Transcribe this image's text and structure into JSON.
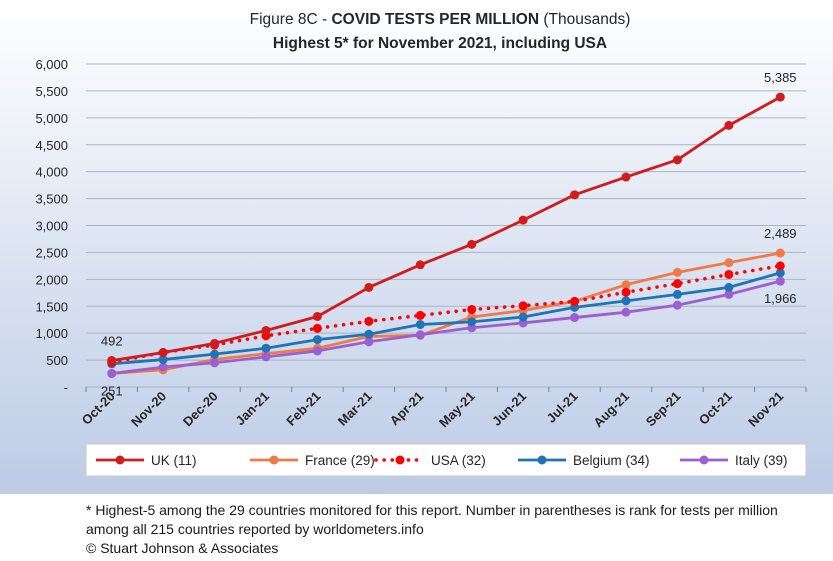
{
  "chart_data": {
    "type": "line",
    "title_prefix": "Figure 8C - ",
    "title_bold": "COVID TESTS PER MILLION",
    "title_suffix": " (Thousands)",
    "subtitle": "Highest 5* for November 2021, including USA",
    "categories": [
      "Oct-20",
      "Nov-20",
      "Dec-20",
      "Jan-21",
      "Feb-21",
      "Mar-21",
      "Apr-21",
      "May-21",
      "Jun-21",
      "Jul-21",
      "Aug-21",
      "Sep-21",
      "Oct-21",
      "Nov-21"
    ],
    "ylim": [
      0,
      6000
    ],
    "yticks": [
      0,
      500,
      1000,
      1500,
      2000,
      2500,
      3000,
      3500,
      4000,
      4500,
      5000,
      5500,
      6000
    ],
    "ytick_labels": [
      "-",
      "500",
      "1,000",
      "1,500",
      "2,000",
      "2,500",
      "3,000",
      "3,500",
      "4,000",
      "4,500",
      "5,000",
      "5,500",
      "6,000"
    ],
    "grid": true,
    "legend_position": "bottom",
    "series": [
      {
        "name": "UK (11)",
        "color": "#d21b1b",
        "style": "solid",
        "values": [
          492,
          640,
          810,
          1050,
          1310,
          1850,
          2270,
          2650,
          3100,
          3570,
          3900,
          4220,
          4860,
          5385
        ]
      },
      {
        "name": "France (29)",
        "color": "#f07a47",
        "style": "solid",
        "values": [
          251,
          320,
          510,
          620,
          720,
          940,
          960,
          1300,
          1420,
          1590,
          1900,
          2130,
          2310,
          2489
        ]
      },
      {
        "name": "USA (32)",
        "color": "#ff0000",
        "style": "dotted",
        "values": [
          460,
          640,
          780,
          950,
          1090,
          1220,
          1330,
          1440,
          1510,
          1590,
          1760,
          1920,
          2090,
          2250
        ]
      },
      {
        "name": "Belgium (34)",
        "color": "#1f74b8",
        "style": "solid",
        "values": [
          430,
          510,
          610,
          720,
          880,
          980,
          1160,
          1210,
          1300,
          1480,
          1600,
          1720,
          1850,
          2120
        ]
      },
      {
        "name": "Italy (39)",
        "color": "#9b5fcf",
        "style": "solid",
        "values": [
          251,
          370,
          450,
          560,
          670,
          840,
          970,
          1100,
          1190,
          1290,
          1390,
          1520,
          1720,
          1966
        ]
      }
    ],
    "annotations": [
      {
        "text": "492",
        "series": 0,
        "index": 0,
        "position": "above"
      },
      {
        "text": "251",
        "series": 1,
        "index": 0,
        "position": "below"
      },
      {
        "text": "5,385",
        "series": 0,
        "index": 13,
        "position": "above"
      },
      {
        "text": "2,489",
        "series": 1,
        "index": 13,
        "position": "above"
      },
      {
        "text": "1,966",
        "series": 4,
        "index": 13,
        "position": "below"
      }
    ]
  },
  "footnote": {
    "line1": "* Highest-5 among the 29 countries monitored for this report. Number in parentheses is rank for tests per million",
    "line2": "among all 215 countries reported by worldometers.info",
    "line3": "© Stuart Johnson & Associates"
  }
}
